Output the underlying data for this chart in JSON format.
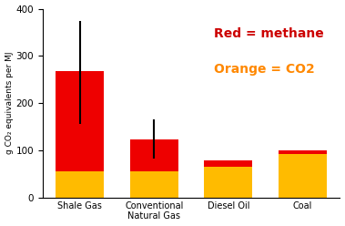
{
  "categories": [
    "Shale Gas",
    "Conventional\nNatural Gas",
    "Diesel Oil",
    "Coal"
  ],
  "orange_values": [
    55,
    55,
    65,
    92
  ],
  "red_values": [
    212,
    68,
    13,
    8
  ],
  "error_bar_centers": [
    265,
    123,
    0,
    0
  ],
  "error_lower": [
    110,
    40,
    0,
    0
  ],
  "error_upper": [
    110,
    42,
    0,
    0
  ],
  "ylim": [
    0,
    400
  ],
  "yticks": [
    0,
    100,
    200,
    300,
    400
  ],
  "ylabel": "g CO₂ equivalents per MJ",
  "red_color": "#ee0000",
  "orange_color": "#ffbb00",
  "legend_red_text": "Red = methane",
  "legend_orange_text": "Orange = CO2",
  "legend_red_color": "#cc0000",
  "legend_orange_color": "#ff8800",
  "bar_width": 0.65,
  "background_color": "#ffffff",
  "legend_fontsize": 10
}
